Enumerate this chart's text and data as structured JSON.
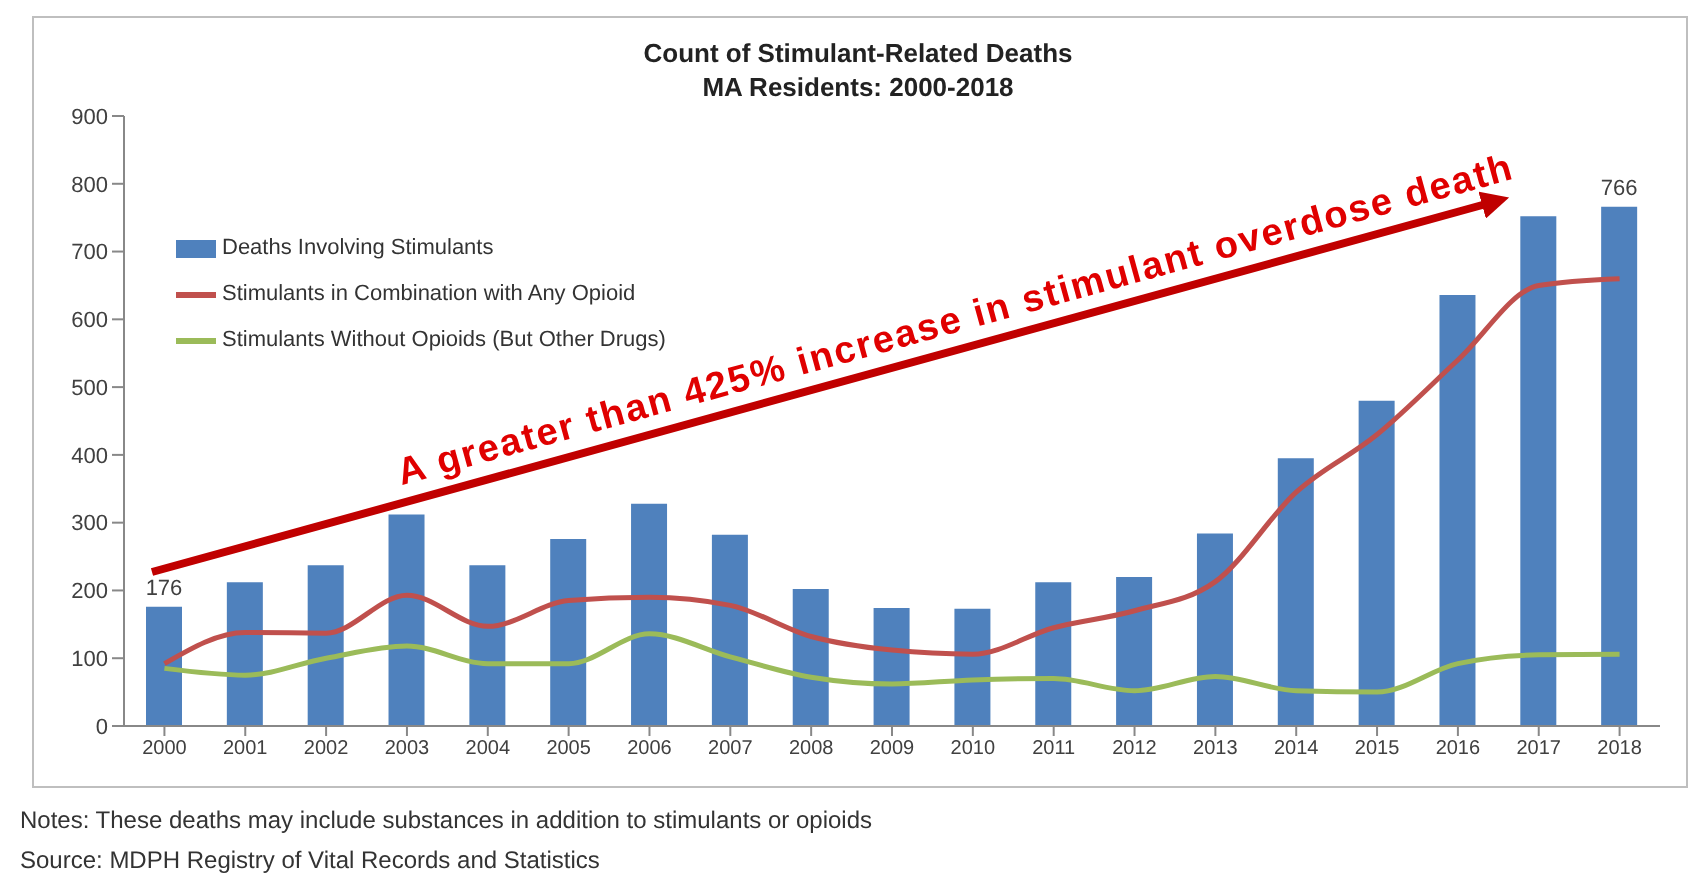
{
  "chart_data": {
    "type": "bar",
    "title": "Count of Stimulant-Related Deaths",
    "subtitle": "MA Residents: 2000-2018",
    "categories": [
      "2000",
      "2001",
      "2002",
      "2003",
      "2004",
      "2005",
      "2006",
      "2007",
      "2008",
      "2009",
      "2010",
      "2011",
      "2012",
      "2013",
      "2014",
      "2015",
      "2016",
      "2017",
      "2018"
    ],
    "series": [
      {
        "name": "Deaths Involving Stimulants",
        "color": "#4f81bd",
        "values": [
          176,
          212,
          237,
          312,
          237,
          276,
          328,
          282,
          202,
          174,
          173,
          212,
          220,
          284,
          395,
          480,
          636,
          752,
          766
        ],
        "value_labels": [
          "176",
          null,
          null,
          null,
          null,
          null,
          null,
          null,
          null,
          null,
          null,
          null,
          null,
          null,
          null,
          null,
          null,
          null,
          "766"
        ]
      },
      {
        "name": "Stimulants in Combination with Any Opioid",
        "type": "line",
        "color": "#c0504d",
        "values": [
          92,
          138,
          137,
          193,
          147,
          185,
          190,
          178,
          132,
          112,
          106,
          145,
          170,
          213,
          345,
          430,
          540,
          650,
          660
        ]
      },
      {
        "name": "Stimulants Without Opioids (But Other Drugs)",
        "type": "line",
        "color": "#9bbb59",
        "values": [
          85,
          75,
          100,
          118,
          92,
          92,
          136,
          102,
          72,
          62,
          68,
          70,
          52,
          73,
          52,
          50,
          92,
          105,
          106
        ]
      }
    ],
    "ylim": [
      0,
      900
    ],
    "yticks": [
      0,
      100,
      200,
      300,
      400,
      500,
      600,
      700,
      800,
      900
    ],
    "grid": false,
    "legend": "top left",
    "marker": "none",
    "annotations": [
      "A greater than 425% increase in stimulant overdose death",
      "Notes: These deaths may include substances in addition to stimulants or opioids",
      "Source: MDPH Registry of Vital Records and Statistics"
    ]
  }
}
